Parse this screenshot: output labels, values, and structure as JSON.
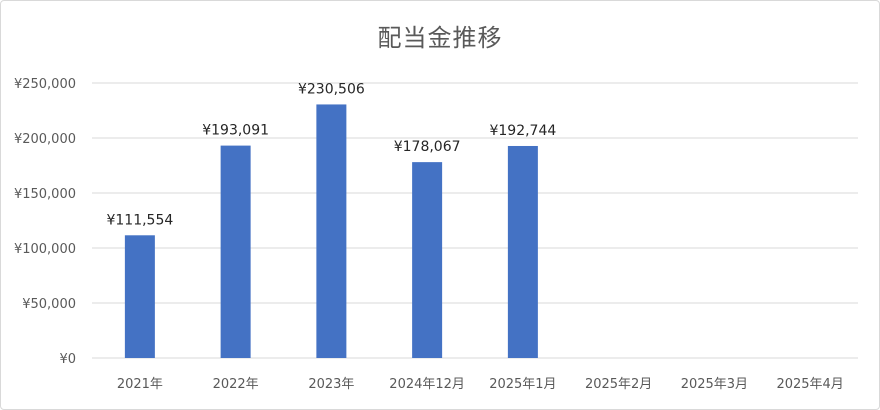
{
  "chart_data": {
    "type": "bar",
    "title": "配当金推移",
    "categories": [
      "2021年",
      "2022年",
      "2023年",
      "2024年12月",
      "2025年1月",
      "2025年2月",
      "2025年3月",
      "2025年4月"
    ],
    "values": [
      111554,
      193091,
      230506,
      178067,
      192744,
      null,
      null,
      null
    ],
    "data_labels": [
      "¥111,554",
      "¥193,091",
      "¥230,506",
      "¥178,067",
      "¥192,744",
      "",
      "",
      ""
    ],
    "y_ticks": [
      0,
      50000,
      100000,
      150000,
      200000,
      250000
    ],
    "y_tick_labels": [
      "¥0",
      "¥50,000",
      "¥100,000",
      "¥150,000",
      "¥200,000",
      "¥250,000"
    ],
    "ylim": [
      0,
      250000
    ],
    "grid": true,
    "bar_color": "#4472c4",
    "grid_color": "#d9d9d9"
  }
}
